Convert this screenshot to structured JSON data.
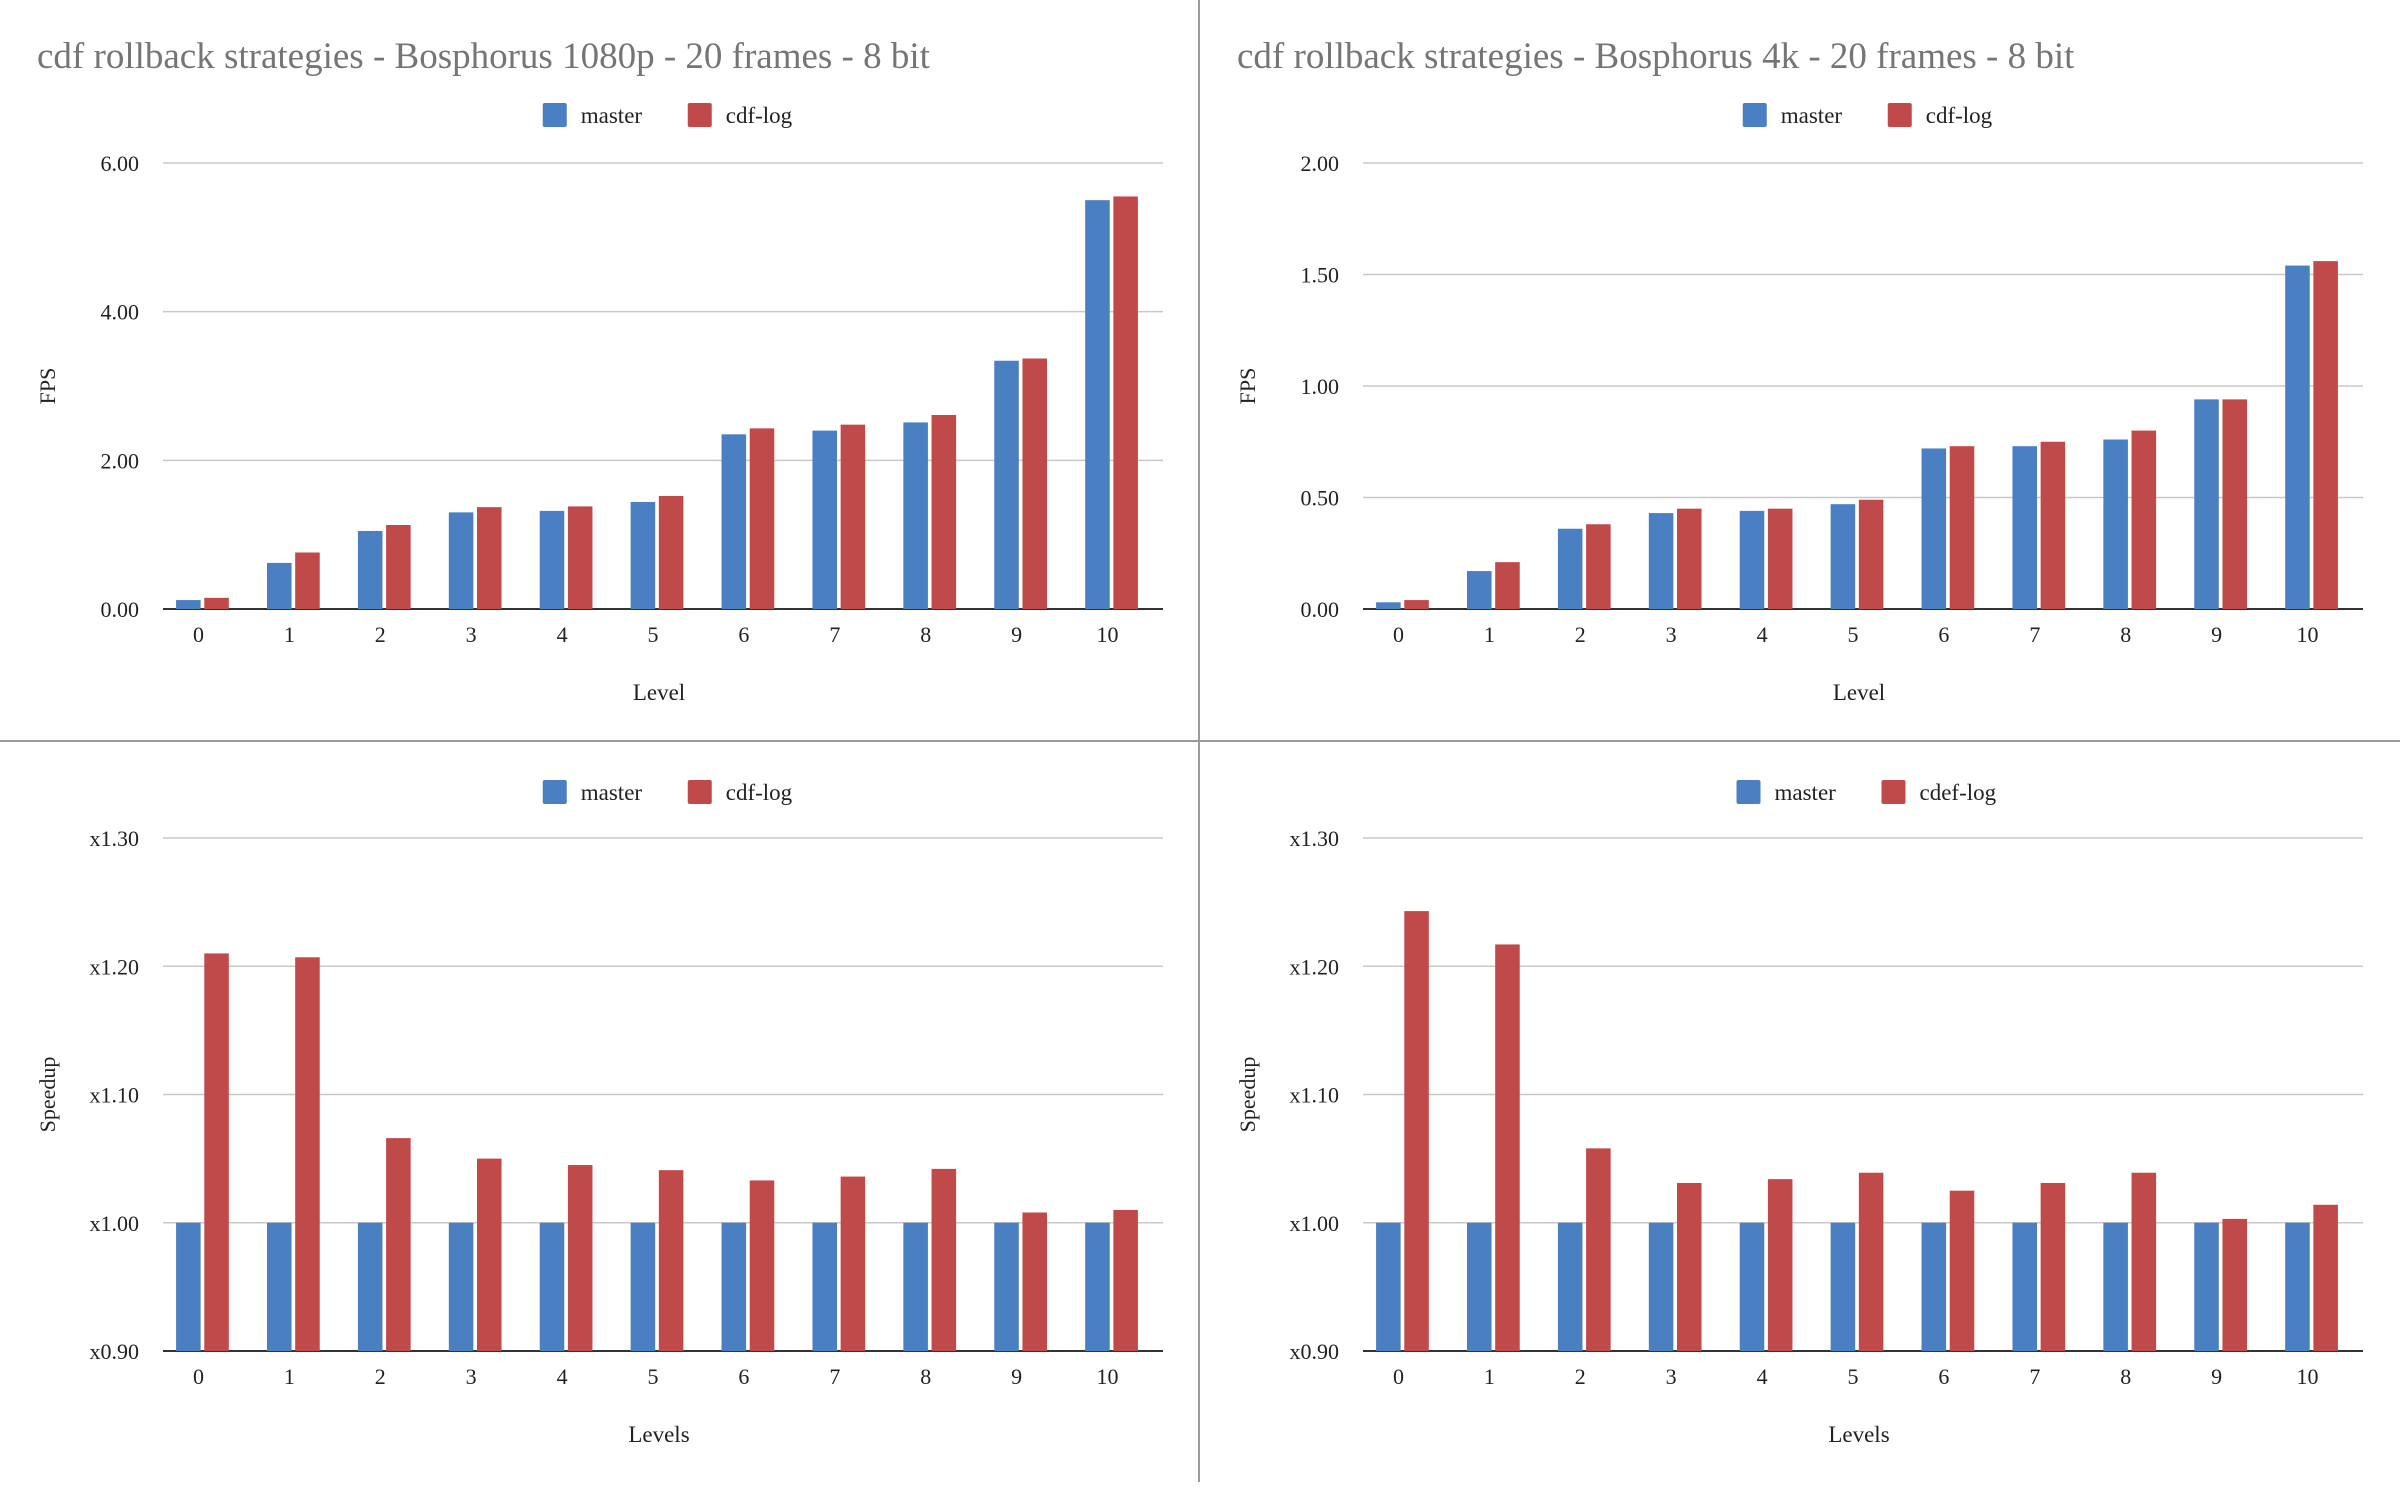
{
  "colors": {
    "master": "#4a7fc1",
    "variant": "#c0494a",
    "grid": "#c8c8c8",
    "axis": "#333333",
    "title": "#757575",
    "divider": "#9a9a9a"
  },
  "chart_data": [
    {
      "type": "bar",
      "title": "cdf rollback strategies - Bosphorus 1080p - 20 frames - 8 bit",
      "xlabel": "Level",
      "ylabel": "FPS",
      "categories": [
        "0",
        "1",
        "2",
        "3",
        "4",
        "5",
        "6",
        "7",
        "8",
        "9",
        "10"
      ],
      "ylim": [
        0,
        6
      ],
      "yticks": [
        0,
        2,
        4,
        6
      ],
      "ytick_labels": [
        "0.00",
        "2.00",
        "4.00",
        "6.00"
      ],
      "legend_position": "top-center",
      "grid": true,
      "series": [
        {
          "name": "master",
          "values": [
            0.12,
            0.62,
            1.05,
            1.3,
            1.32,
            1.44,
            2.35,
            2.4,
            2.51,
            3.34,
            5.5
          ]
        },
        {
          "name": "cdf-log",
          "values": [
            0.15,
            0.76,
            1.13,
            1.37,
            1.38,
            1.52,
            2.43,
            2.48,
            2.61,
            3.37,
            5.55
          ]
        }
      ]
    },
    {
      "type": "bar",
      "title": "cdf rollback strategies - Bosphorus 4k - 20 frames - 8 bit",
      "xlabel": "Level",
      "ylabel": "FPS",
      "categories": [
        "0",
        "1",
        "2",
        "3",
        "4",
        "5",
        "6",
        "7",
        "8",
        "9",
        "10"
      ],
      "ylim": [
        0,
        2
      ],
      "yticks": [
        0,
        0.5,
        1,
        1.5,
        2
      ],
      "ytick_labels": [
        "0.00",
        "0.50",
        "1.00",
        "1.50",
        "2.00"
      ],
      "legend_position": "top-center",
      "grid": true,
      "series": [
        {
          "name": "master",
          "values": [
            0.03,
            0.17,
            0.36,
            0.43,
            0.44,
            0.47,
            0.72,
            0.73,
            0.76,
            0.94,
            1.54
          ]
        },
        {
          "name": "cdf-log",
          "values": [
            0.04,
            0.21,
            0.38,
            0.45,
            0.45,
            0.49,
            0.73,
            0.75,
            0.8,
            0.94,
            1.56
          ]
        }
      ]
    },
    {
      "type": "bar",
      "title": "",
      "xlabel": "Levels",
      "ylabel": "Speedup",
      "categories": [
        "0",
        "1",
        "2",
        "3",
        "4",
        "5",
        "6",
        "7",
        "8",
        "9",
        "10"
      ],
      "ylim": [
        0.9,
        1.3
      ],
      "yticks": [
        0.9,
        1.0,
        1.1,
        1.2,
        1.3
      ],
      "ytick_labels": [
        "x0.90",
        "x1.00",
        "x1.10",
        "x1.20",
        "x1.30"
      ],
      "legend_position": "top-center",
      "grid": true,
      "series": [
        {
          "name": "master",
          "values": [
            1.0,
            1.0,
            1.0,
            1.0,
            1.0,
            1.0,
            1.0,
            1.0,
            1.0,
            1.0,
            1.0
          ]
        },
        {
          "name": "cdf-log",
          "values": [
            1.21,
            1.207,
            1.066,
            1.05,
            1.045,
            1.041,
            1.033,
            1.036,
            1.042,
            1.008,
            1.01
          ]
        }
      ]
    },
    {
      "type": "bar",
      "title": "",
      "xlabel": "Levels",
      "ylabel": "Speedup",
      "categories": [
        "0",
        "1",
        "2",
        "3",
        "4",
        "5",
        "6",
        "7",
        "8",
        "9",
        "10"
      ],
      "ylim": [
        0.9,
        1.3
      ],
      "yticks": [
        0.9,
        1.0,
        1.1,
        1.2,
        1.3
      ],
      "ytick_labels": [
        "x0.90",
        "x1.00",
        "x1.10",
        "x1.20",
        "x1.30"
      ],
      "legend_position": "top-center",
      "grid": true,
      "series": [
        {
          "name": "master",
          "values": [
            1.0,
            1.0,
            1.0,
            1.0,
            1.0,
            1.0,
            1.0,
            1.0,
            1.0,
            1.0,
            1.0
          ]
        },
        {
          "name": "cdef-log",
          "values": [
            1.243,
            1.217,
            1.058,
            1.031,
            1.034,
            1.039,
            1.025,
            1.031,
            1.039,
            1.003,
            1.014
          ]
        }
      ]
    }
  ]
}
